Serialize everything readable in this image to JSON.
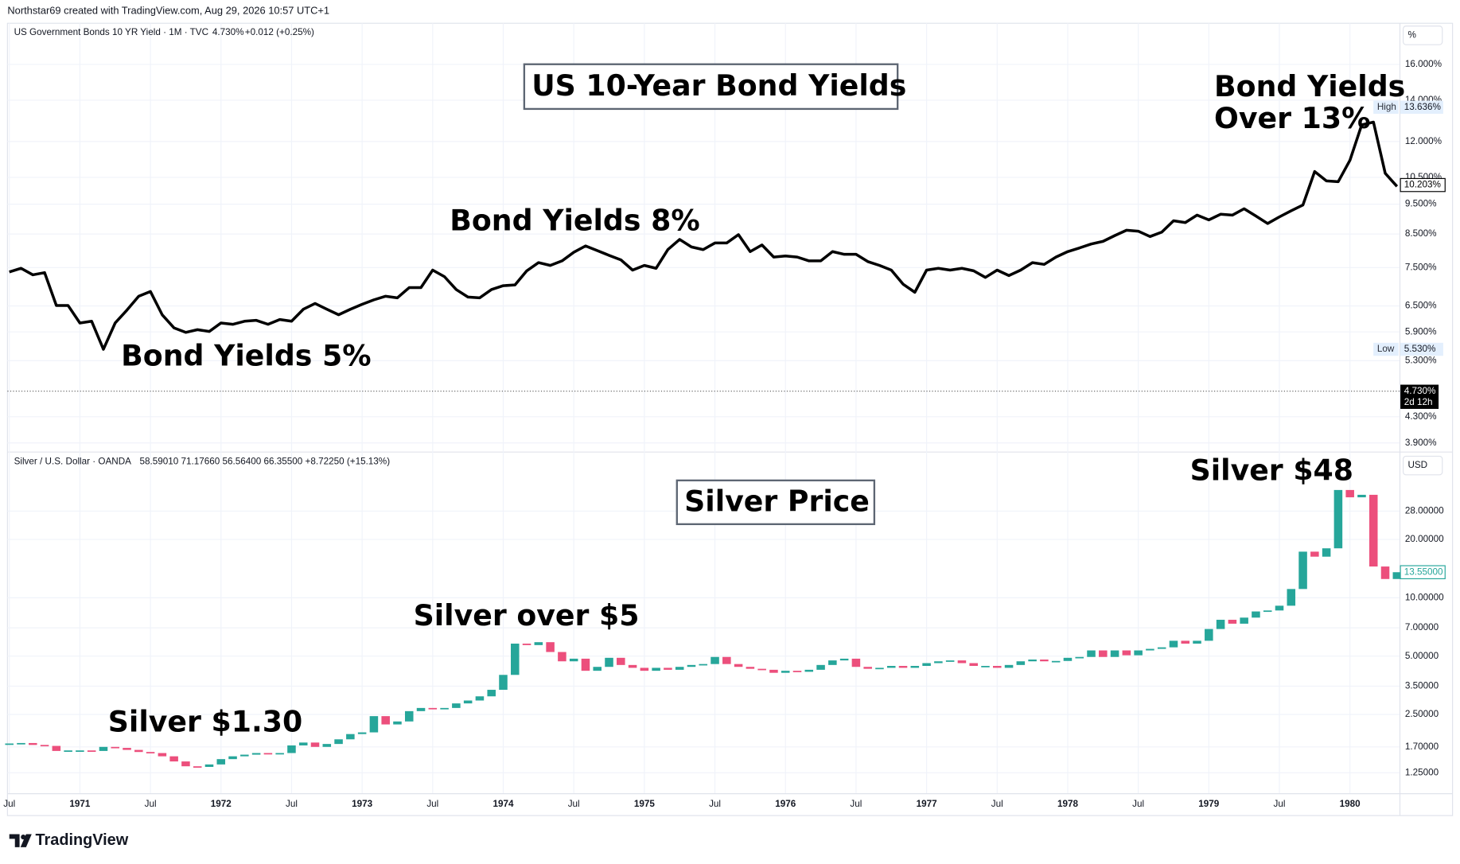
{
  "header": {
    "credit": "Northstar69 created with TradingView.com, Aug 29, 2026 10:57 UTC+1",
    "logo": "TradingView"
  },
  "chart_data": [
    {
      "type": "line",
      "title": "US 10-Year Bond Yields",
      "symbol": "US Government Bonds 10 YR Yield · 1M · TVC",
      "quote": "4.730%",
      "change": "+0.012 (+0.25%)",
      "unit": "%",
      "log_scale": true,
      "grid": true,
      "color": "#000000",
      "x": [
        "1970-07",
        "1970-08",
        "1970-09",
        "1970-10",
        "1970-11",
        "1970-12",
        "1971-01",
        "1971-02",
        "1971-03",
        "1971-04",
        "1971-05",
        "1971-06",
        "1971-07",
        "1971-08",
        "1971-09",
        "1971-10",
        "1971-11",
        "1971-12",
        "1972-01",
        "1972-02",
        "1972-03",
        "1972-04",
        "1972-05",
        "1972-06",
        "1972-07",
        "1972-08",
        "1972-09",
        "1972-10",
        "1972-11",
        "1972-12",
        "1973-01",
        "1973-02",
        "1973-03",
        "1973-04",
        "1973-05",
        "1973-06",
        "1973-07",
        "1973-08",
        "1973-09",
        "1973-10",
        "1973-11",
        "1973-12",
        "1974-01",
        "1974-02",
        "1974-03",
        "1974-04",
        "1974-05",
        "1974-06",
        "1974-07",
        "1974-08",
        "1974-09",
        "1974-10",
        "1974-11",
        "1974-12",
        "1975-01",
        "1975-02",
        "1975-03",
        "1975-04",
        "1975-05",
        "1975-06",
        "1975-07",
        "1975-08",
        "1975-09",
        "1975-10",
        "1975-11",
        "1975-12",
        "1976-01",
        "1976-02",
        "1976-03",
        "1976-04",
        "1976-05",
        "1976-06",
        "1976-07",
        "1976-08",
        "1976-09",
        "1976-10",
        "1976-11",
        "1976-12",
        "1977-01",
        "1977-02",
        "1977-03",
        "1977-04",
        "1977-05",
        "1977-06",
        "1977-07",
        "1977-08",
        "1977-09",
        "1977-10",
        "1977-11",
        "1977-12",
        "1978-01",
        "1978-02",
        "1978-03",
        "1978-04",
        "1978-05",
        "1978-06",
        "1978-07",
        "1978-08",
        "1978-09",
        "1978-10",
        "1978-11",
        "1978-12",
        "1979-01",
        "1979-02",
        "1979-03",
        "1979-04",
        "1979-05",
        "1979-06",
        "1979-07",
        "1979-08",
        "1979-09",
        "1979-10",
        "1979-11",
        "1979-12",
        "1980-01",
        "1980-02",
        "1980-03",
        "1980-04",
        "1980-05"
      ],
      "values": [
        7.38,
        7.48,
        7.3,
        7.36,
        6.51,
        6.51,
        6.1,
        6.14,
        5.53,
        6.1,
        6.4,
        6.74,
        6.86,
        6.29,
        5.99,
        5.89,
        5.95,
        5.91,
        6.1,
        6.07,
        6.14,
        6.16,
        6.07,
        6.18,
        6.14,
        6.42,
        6.56,
        6.42,
        6.29,
        6.42,
        6.54,
        6.65,
        6.74,
        6.7,
        6.96,
        6.96,
        7.43,
        7.25,
        6.91,
        6.72,
        6.7,
        6.91,
        7.01,
        7.03,
        7.41,
        7.64,
        7.56,
        7.69,
        7.94,
        8.13,
        7.99,
        7.85,
        7.72,
        7.43,
        7.56,
        7.48,
        8.02,
        8.33,
        8.1,
        8.02,
        8.22,
        8.22,
        8.48,
        7.96,
        8.16,
        7.8,
        7.83,
        7.8,
        7.69,
        7.69,
        7.96,
        7.88,
        7.88,
        7.67,
        7.56,
        7.43,
        7.05,
        6.84,
        7.43,
        7.48,
        7.43,
        7.48,
        7.41,
        7.23,
        7.43,
        7.28,
        7.43,
        7.64,
        7.59,
        7.8,
        7.96,
        8.07,
        8.19,
        8.27,
        8.45,
        8.62,
        8.59,
        8.42,
        8.56,
        8.93,
        8.87,
        9.12,
        8.96,
        9.15,
        9.12,
        9.34,
        9.09,
        8.84,
        9.06,
        9.27,
        9.47,
        10.73,
        10.36,
        10.33,
        11.19,
        12.77,
        12.9,
        10.66,
        10.15
      ],
      "ylim": [
        3.79,
        18.65
      ],
      "yticks": [
        {
          "value": 16,
          "label": "16.000%"
        },
        {
          "value": 14,
          "label": "14.000%"
        },
        {
          "value": 12,
          "label": "12.000%"
        },
        {
          "value": 10.5,
          "label": "10.500%"
        },
        {
          "value": 9.5,
          "label": "9.500%"
        },
        {
          "value": 8.5,
          "label": "8.500%"
        },
        {
          "value": 7.5,
          "label": "7.500%"
        },
        {
          "value": 6.5,
          "label": "6.500%"
        },
        {
          "value": 5.9,
          "label": "5.900%"
        },
        {
          "value": 5.3,
          "label": "5.300%"
        },
        {
          "value": 4.3,
          "label": "4.300%"
        },
        {
          "value": 3.9,
          "label": "3.900%"
        }
      ],
      "annotations": [
        {
          "lines": [
            "Bond Yields 5%"
          ]
        },
        {
          "lines": [
            "Bond Yields 8%"
          ]
        },
        {
          "lines": [
            "Bond Yields",
            "Over 13%"
          ]
        }
      ],
      "price_labels": [
        {
          "name": "High",
          "value": 13.636,
          "label": "13.636%"
        },
        {
          "value": 10.203,
          "label": "10.203%"
        },
        {
          "name": "Low",
          "value": 5.53,
          "label": "5.530%"
        },
        {
          "value": 4.73,
          "label": "4.730%",
          "countdown": "2d 12h"
        }
      ]
    },
    {
      "type": "candlestick",
      "title": "Silver Price",
      "symbol": "Silver / U.S. Dollar · OANDA",
      "quote": "58.59010 71.17660 56.56400 66.35500 +8.72250 (+15.13%)",
      "unit": "USD",
      "log_scale": true,
      "grid": true,
      "up_color": "#26a69a",
      "down_color": "#ec4f7c",
      "x": [
        "1970-07",
        "1970-08",
        "1970-09",
        "1970-10",
        "1970-11",
        "1970-12",
        "1971-01",
        "1971-02",
        "1971-03",
        "1971-04",
        "1971-05",
        "1971-06",
        "1971-07",
        "1971-08",
        "1971-09",
        "1971-10",
        "1971-11",
        "1971-12",
        "1972-01",
        "1972-02",
        "1972-03",
        "1972-04",
        "1972-05",
        "1972-06",
        "1972-07",
        "1972-08",
        "1972-09",
        "1972-10",
        "1972-11",
        "1972-12",
        "1973-01",
        "1973-02",
        "1973-03",
        "1973-04",
        "1973-05",
        "1973-06",
        "1973-07",
        "1973-08",
        "1973-09",
        "1973-10",
        "1973-11",
        "1973-12",
        "1974-01",
        "1974-02",
        "1974-03",
        "1974-04",
        "1974-05",
        "1974-06",
        "1974-07",
        "1974-08",
        "1974-09",
        "1974-10",
        "1974-11",
        "1974-12",
        "1975-01",
        "1975-02",
        "1975-03",
        "1975-04",
        "1975-05",
        "1975-06",
        "1975-07",
        "1975-08",
        "1975-09",
        "1975-10",
        "1975-11",
        "1975-12",
        "1976-01",
        "1976-02",
        "1976-03",
        "1976-04",
        "1976-05",
        "1976-06",
        "1976-07",
        "1976-08",
        "1976-09",
        "1976-10",
        "1976-11",
        "1976-12",
        "1977-01",
        "1977-02",
        "1977-03",
        "1977-04",
        "1977-05",
        "1977-06",
        "1977-07",
        "1977-08",
        "1977-09",
        "1977-10",
        "1977-11",
        "1977-12",
        "1978-01",
        "1978-02",
        "1978-03",
        "1978-04",
        "1978-05",
        "1978-06",
        "1978-07",
        "1978-08",
        "1978-09",
        "1978-10",
        "1978-11",
        "1978-12",
        "1979-01",
        "1979-02",
        "1979-03",
        "1979-04",
        "1979-05",
        "1979-06",
        "1979-07",
        "1979-08",
        "1979-09",
        "1979-10",
        "1979-11",
        "1979-12",
        "1980-01",
        "1980-02",
        "1980-03",
        "1980-04",
        "1980-05"
      ],
      "values": [
        1.77,
        1.78,
        1.74,
        1.72,
        1.62,
        1.63,
        1.63,
        1.62,
        1.7,
        1.68,
        1.64,
        1.6,
        1.58,
        1.52,
        1.43,
        1.35,
        1.34,
        1.38,
        1.47,
        1.52,
        1.55,
        1.58,
        1.57,
        1.58,
        1.73,
        1.79,
        1.7,
        1.76,
        1.86,
        1.98,
        2.02,
        2.45,
        2.22,
        2.3,
        2.6,
        2.7,
        2.69,
        2.7,
        2.85,
        2.95,
        3.1,
        3.35,
        4.0,
        5.8,
        5.7,
        5.9,
        5.25,
        4.7,
        4.85,
        4.2,
        4.4,
        4.9,
        4.5,
        4.35,
        4.2,
        4.35,
        4.25,
        4.4,
        4.5,
        4.55,
        4.95,
        4.55,
        4.4,
        4.3,
        4.25,
        4.1,
        4.2,
        4.15,
        4.25,
        4.5,
        4.75,
        4.85,
        4.4,
        4.3,
        4.35,
        4.45,
        4.35,
        4.45,
        4.6,
        4.7,
        4.75,
        4.6,
        4.45,
        4.45,
        4.35,
        4.5,
        4.7,
        4.8,
        4.7,
        4.72,
        4.9,
        4.95,
        5.35,
        4.95,
        5.35,
        5.05,
        5.35,
        5.45,
        5.55,
        6.0,
        5.8,
        6.0,
        6.9,
        7.7,
        7.35,
        7.9,
        8.5,
        8.6,
        9.1,
        11.1,
        17.3,
        16.3,
        18.0,
        36.0,
        33.0,
        34.0,
        14.5,
        12.5,
        13.55
      ],
      "ylim": [
        0.98,
        55.6
      ],
      "yticks": [
        {
          "value": 28,
          "label": "28.00000"
        },
        {
          "value": 20,
          "label": "20.00000"
        },
        {
          "value": 10,
          "label": "10.00000"
        },
        {
          "value": 7,
          "label": "7.00000"
        },
        {
          "value": 5,
          "label": "5.00000"
        },
        {
          "value": 3.5,
          "label": "3.50000"
        },
        {
          "value": 2.5,
          "label": "2.50000"
        },
        {
          "value": 1.7,
          "label": "1.70000"
        },
        {
          "value": 1.25,
          "label": "1.25000"
        }
      ],
      "xticks": [
        {
          "value": "1970-07",
          "label": "Jul"
        },
        {
          "value": "1971-01",
          "label": "1971"
        },
        {
          "value": "1971-07",
          "label": "Jul"
        },
        {
          "value": "1972-01",
          "label": "1972"
        },
        {
          "value": "1972-07",
          "label": "Jul"
        },
        {
          "value": "1973-01",
          "label": "1973"
        },
        {
          "value": "1973-07",
          "label": "Jul"
        },
        {
          "value": "1974-01",
          "label": "1974"
        },
        {
          "value": "1974-07",
          "label": "Jul"
        },
        {
          "value": "1975-01",
          "label": "1975"
        },
        {
          "value": "1975-07",
          "label": "Jul"
        },
        {
          "value": "1976-01",
          "label": "1976"
        },
        {
          "value": "1976-07",
          "label": "Jul"
        },
        {
          "value": "1977-01",
          "label": "1977"
        },
        {
          "value": "1977-07",
          "label": "Jul"
        },
        {
          "value": "1978-01",
          "label": "1978"
        },
        {
          "value": "1978-07",
          "label": "Jul"
        },
        {
          "value": "1979-01",
          "label": "1979"
        },
        {
          "value": "1979-07",
          "label": "Jul"
        },
        {
          "value": "1980-01",
          "label": "1980"
        }
      ],
      "annotations": [
        {
          "lines": [
            "Silver $1.30"
          ]
        },
        {
          "lines": [
            "Silver over $5"
          ]
        },
        {
          "lines": [
            "Silver $48"
          ]
        }
      ],
      "price_labels": [
        {
          "value": 13.55,
          "label": "13.55000"
        }
      ]
    }
  ]
}
